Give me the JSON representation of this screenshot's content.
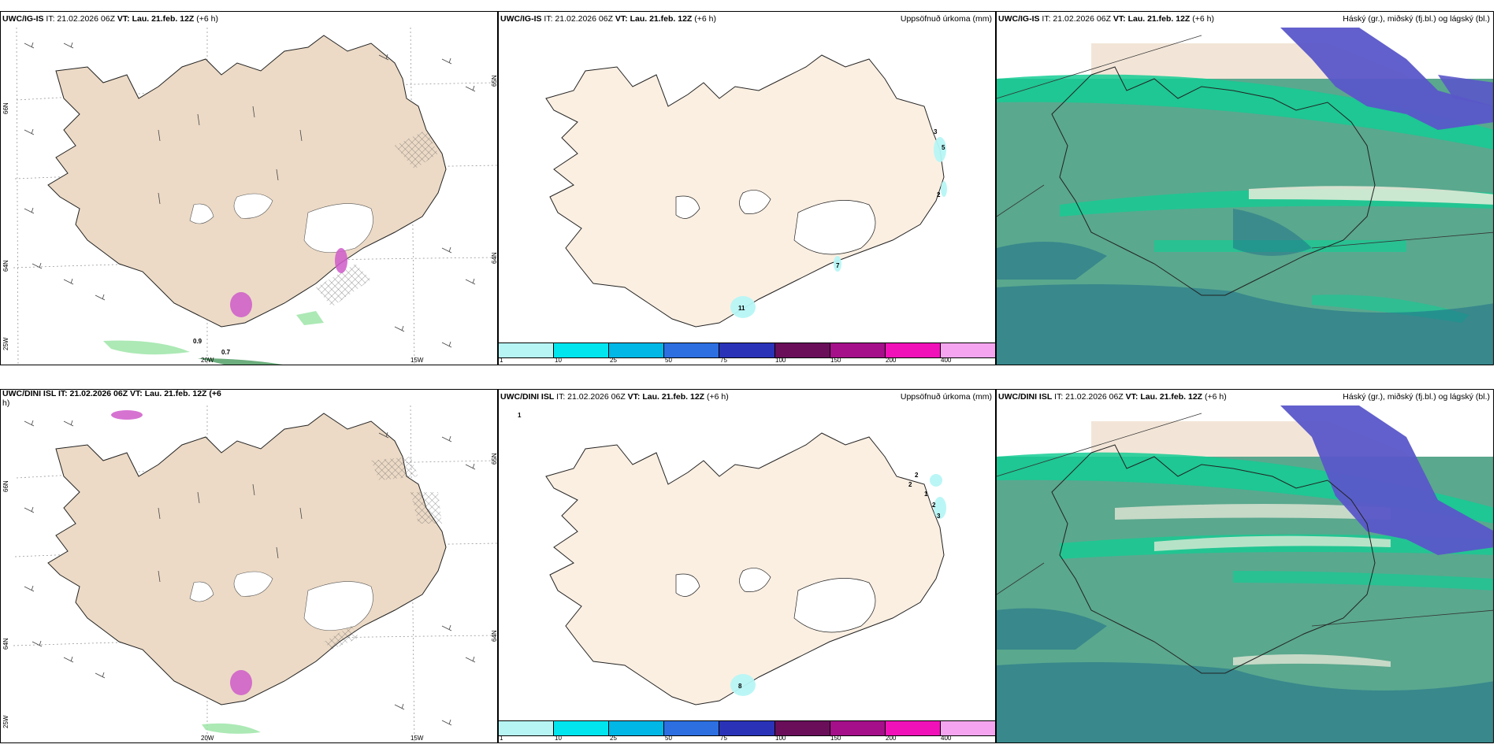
{
  "rows": [
    {
      "model": "UWC/IG-IS",
      "title_mid": " IT: 21.02.2026 06Z ",
      "vt_label": "VT: Lau. 21.feb. 12Z",
      "lead": " (+6 h)",
      "precip_subtitle": "Uppsöfnuð úrkoma (mm)",
      "cloud_subtitle": "Háský (gr.), miðský (fj.bl.) og lágský (bl.)",
      "wind_labels": [
        "0.9",
        "0.7"
      ],
      "precip_labels": [
        "3",
        "5",
        "2",
        "11",
        "7"
      ],
      "lat_labels": [
        "66N",
        "64N",
        "25W"
      ],
      "lat_labels_right": [
        "65N",
        "64N"
      ],
      "lon_labels": [
        "20W",
        "15W"
      ]
    },
    {
      "model": "UWC/DINI ISL",
      "title_mid": " IT: 21.02.2026 06Z ",
      "vt_label": "VT: Lau. 21.feb. 12Z",
      "lead": " (+6 h)",
      "wind_title_overlap": "UWC/DINI ISL IT: 21.02.2026 06Z VT: Lau. 21.feb. 12Z (+6",
      "wind_title_wrap": "h)",
      "precip_subtitle": "Uppsöfnuð úrkoma (mm)",
      "cloud_subtitle": "Háský (gr.), miðský (fj.bl.) og lágský (bl.)",
      "precip_labels": [
        "1",
        "2",
        "2",
        "1",
        "2",
        "3",
        "8"
      ],
      "lat_labels": [
        "66N",
        "64N",
        "25W"
      ],
      "lat_labels_right": [
        "65N",
        "64N"
      ],
      "lon_labels": [
        "20W",
        "15W"
      ]
    }
  ],
  "legend": {
    "labels": [
      "1",
      "10",
      "25",
      "50",
      "75",
      "100",
      "150",
      "200",
      "400"
    ],
    "colors": [
      "#b7f5f5",
      "#00e5ee",
      "#00b7e6",
      "#2d6fe0",
      "#2a33b8",
      "#6a0e5a",
      "#a50f8a",
      "#f012b8",
      "#f5a5ef"
    ]
  },
  "colors": {
    "land": "#ecdac6",
    "land_light": "#fbefe2",
    "ice": "#ffffff",
    "sea_cloud": "#5aa88e",
    "cloud_band": "#14cc94",
    "high_cloud": "#5a57c9",
    "low_cloud": "#1e6e8a",
    "wind_hatch": "#cf5ac9",
    "wind_green": "#97e3a2"
  }
}
